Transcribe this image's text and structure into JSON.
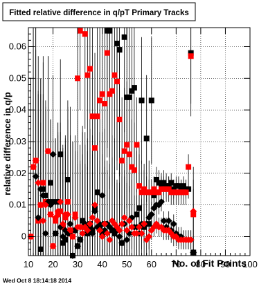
{
  "chart_data": {
    "type": "scatter",
    "title": "Fitted relative difference in q/pT Primary Tracks",
    "xlabel": "No. of Fit Points",
    "ylabel": "relative difference in q/p",
    "xlim": [
      10,
      100
    ],
    "ylim": [
      -0.006,
      0.066
    ],
    "x_ticks": [
      10,
      20,
      30,
      40,
      50,
      60,
      70,
      80,
      90,
      100
    ],
    "y_ticks": [
      0,
      0.01,
      0.02,
      0.03,
      0.04,
      0.05,
      0.06
    ],
    "x_tick_labels": [
      "10",
      "20",
      "30",
      "40",
      "50",
      "60",
      "70",
      "80",
      "90",
      "100"
    ],
    "y_tick_labels": [
      "0",
      "0.01",
      "0.02",
      "0.03",
      "0.04",
      "0.05",
      "0.06"
    ],
    "grid": true,
    "series": [
      {
        "marker": "square",
        "color": "#000000",
        "x": [
          15,
          16,
          17,
          18,
          19,
          20,
          21,
          22,
          23,
          24,
          25,
          26,
          27,
          28,
          29,
          30,
          31,
          32,
          33,
          34,
          35,
          36,
          37,
          38,
          39,
          40,
          41,
          42,
          43,
          44,
          45,
          46,
          47,
          48,
          49,
          50,
          51,
          52,
          53,
          54,
          55,
          56,
          57,
          58,
          59,
          60,
          61,
          62,
          63,
          64,
          65,
          66,
          67,
          68,
          69,
          70,
          71,
          72,
          73,
          74,
          75,
          76,
          77
        ],
        "y": [
          -0.004,
          0.015,
          0.013,
          0.011,
          0.017,
          0.011,
          0.001,
          0.011,
          0.026,
          -0.002,
          -0.001,
          0.018,
          0.001,
          -0.006,
          0.002,
          -0.003,
          -0.001,
          0.005,
          0.003,
          0.001,
          0.004,
          0.002,
          0.009,
          0.014,
          0.003,
          0.001,
          0.004,
          0.065,
          0.065,
          0.002,
          0.001,
          0.061,
          0.059,
          -0.002,
          0.063,
          0.044,
          0.044,
          0.046,
          0.047,
          0.007,
          0.009,
          0.043,
          0.003,
          0.031,
          0.004,
          0.043,
          0.013,
          0.018,
          0.017,
          0.016,
          0.017,
          0.016,
          0.016,
          0.017,
          0.015,
          0.016,
          0.016,
          0.015,
          0.016,
          0.015,
          0.015,
          0.058,
          -0.005
        ],
        "err": [
          0.04,
          0.04,
          0.03,
          0.03,
          0.02,
          0.02,
          0.03,
          0.025,
          0.03,
          0.02,
          0.03,
          0.025,
          0.04,
          0.03,
          0.03,
          0.03,
          0.03,
          0.03,
          0.03,
          0.03,
          0.03,
          0.03,
          0.03,
          0.03,
          0.03,
          0.025,
          0.03,
          0.04,
          0.04,
          0.03,
          0.03,
          0.04,
          0.04,
          0.03,
          0.03,
          0.03,
          0.03,
          0.03,
          0.025,
          0.02,
          0.02,
          0.02,
          0.02,
          0.02,
          0.02,
          0.02,
          0.004,
          0.004,
          0.004,
          0.004,
          0.004,
          0.004,
          0.003,
          0.003,
          0.003,
          0.003,
          0.003,
          0.003,
          0.003,
          0.003,
          0.003,
          0.02,
          0.02
        ]
      },
      {
        "marker": "square",
        "color": "#ff0000",
        "x": [
          11,
          12,
          13,
          14,
          15,
          16,
          17,
          18,
          19,
          20,
          21,
          22,
          23,
          24,
          25,
          26,
          27,
          28,
          29,
          30,
          31,
          32,
          33,
          34,
          35,
          36,
          37,
          38,
          39,
          40,
          41,
          42,
          43,
          44,
          45,
          46,
          47,
          48,
          49,
          50,
          51,
          52,
          53,
          54,
          55,
          56,
          57,
          58,
          59,
          60,
          61,
          62,
          63,
          64,
          65,
          66,
          67,
          68,
          69,
          70,
          71,
          72,
          73,
          74,
          75,
          76,
          77
        ],
        "y": [
          0.0,
          0.022,
          0.024,
          0.005,
          0.01,
          0.017,
          0.011,
          0.027,
          0.007,
          -0.003,
          0.005,
          0.007,
          0.008,
          0.003,
          0.006,
          0.011,
          0.002,
          0.0,
          0.007,
          0.05,
          0.065,
          0.003,
          0.064,
          0.051,
          0.053,
          0.038,
          0.028,
          0.038,
          0.043,
          0.045,
          0.042,
          0.058,
          0.045,
          0.046,
          0.051,
          0.049,
          0.037,
          0.024,
          0.027,
          0.029,
          0.026,
          0.022,
          0.021,
          0.029,
          0.016,
          0.014,
          0.015,
          0.014,
          0.014,
          0.014,
          0.015,
          0.014,
          0.014,
          0.015,
          0.015,
          0.015,
          0.015,
          0.014,
          0.014,
          0.014,
          0.014,
          0.014,
          0.014,
          0.014,
          0.022,
          0.057,
          0.007
        ],
        "err": [
          0.05,
          0.05,
          0.05,
          0.04,
          0.04,
          0.04,
          0.03,
          0.03,
          0.03,
          0.03,
          0.025,
          0.025,
          0.025,
          0.025,
          0.025,
          0.03,
          0.03,
          0.03,
          0.02,
          0.03,
          0.025,
          0.03,
          0.03,
          0.03,
          0.03,
          0.03,
          0.03,
          0.03,
          0.03,
          0.03,
          0.03,
          0.03,
          0.03,
          0.03,
          0.03,
          0.025,
          0.025,
          0.02,
          0.02,
          0.02,
          0.02,
          0.015,
          0.015,
          0.015,
          0.01,
          0.01,
          0.006,
          0.005,
          0.004,
          0.004,
          0.004,
          0.004,
          0.004,
          0.004,
          0.004,
          0.004,
          0.004,
          0.004,
          0.004,
          0.004,
          0.004,
          0.004,
          0.004,
          0.004,
          0.004,
          0.015,
          0.015
        ]
      },
      {
        "marker": "diamond",
        "color": "#000000",
        "x": [
          13,
          14,
          15,
          16,
          17,
          18,
          19,
          20,
          21,
          22,
          23,
          24,
          25,
          26,
          27,
          28,
          29,
          30,
          31,
          32,
          33,
          34,
          35,
          36,
          37,
          38,
          39,
          40,
          41,
          42,
          43,
          44,
          45,
          46,
          47,
          48,
          49,
          50,
          51,
          52,
          53,
          54,
          55,
          56,
          57,
          58,
          59,
          60,
          61,
          62,
          63,
          64,
          65,
          66,
          67,
          68,
          69,
          70,
          71,
          72,
          73,
          74,
          75,
          76,
          77
        ],
        "y": [
          0.019,
          0.006,
          0.015,
          0.013,
          0.001,
          0.011,
          0.01,
          0.026,
          0.001,
          0.011,
          0.003,
          0.0,
          0.002,
          0.001,
          0.004,
          -0.006,
          0.002,
          -0.003,
          -0.001,
          0.001,
          0.004,
          0.002,
          0.003,
          0.001,
          0.008,
          0.003,
          0.004,
          0.013,
          0.002,
          0.004,
          0.003,
          0.005,
          0.002,
          0.002,
          0.0,
          -0.002,
          0.004,
          -0.001,
          0.001,
          0.006,
          0.003,
          0.003,
          0.001,
          0.004,
          0.004,
          0.004,
          0.006,
          0.007,
          0.009,
          0.01,
          0.01,
          0.011,
          0.005,
          0.003,
          0.005,
          0.002,
          0.004,
          0.001,
          0.0,
          0.0,
          -0.001,
          -0.001,
          -0.001,
          -0.001,
          -0.005
        ],
        "err": [
          0.04,
          0.04,
          0.03,
          0.03,
          0.03,
          0.03,
          0.02,
          0.025,
          0.03,
          0.025,
          0.025,
          0.025,
          0.025,
          0.025,
          0.025,
          0.02,
          0.025,
          0.025,
          0.025,
          0.025,
          0.025,
          0.025,
          0.025,
          0.025,
          0.02,
          0.02,
          0.02,
          0.02,
          0.02,
          0.02,
          0.02,
          0.02,
          0.02,
          0.015,
          0.015,
          0.015,
          0.015,
          0.015,
          0.015,
          0.01,
          0.01,
          0.01,
          0.01,
          0.008,
          0.006,
          0.005,
          0.004,
          0.004,
          0.003,
          0.003,
          0.003,
          0.003,
          0.003,
          0.003,
          0.003,
          0.003,
          0.003,
          0.003,
          0.003,
          0.003,
          0.003,
          0.003,
          0.003,
          0.003,
          0.003
        ]
      },
      {
        "marker": "diamond",
        "color": "#ff0000",
        "x": [
          11,
          12,
          13,
          14,
          15,
          16,
          17,
          18,
          19,
          20,
          21,
          22,
          23,
          24,
          25,
          26,
          27,
          28,
          29,
          30,
          31,
          32,
          33,
          34,
          35,
          36,
          37,
          38,
          39,
          40,
          41,
          42,
          43,
          44,
          45,
          46,
          47,
          48,
          49,
          50,
          51,
          52,
          53,
          54,
          55,
          56,
          57,
          58,
          59,
          60,
          61,
          62,
          63,
          64,
          65,
          66,
          67,
          68,
          69,
          70,
          71,
          72,
          73,
          74,
          75,
          76,
          77
        ],
        "y": [
          0.0,
          0.022,
          0.024,
          0.017,
          0.01,
          0.005,
          0.01,
          0.027,
          0.007,
          -0.003,
          0.006,
          0.008,
          0.011,
          0.004,
          0.007,
          0.007,
          0.002,
          0.0,
          0.006,
          0.003,
          0.003,
          0.001,
          0.003,
          0.002,
          0.004,
          0.006,
          0.01,
          0.005,
          0.002,
          0.0,
          0.004,
          0.001,
          -0.001,
          0.005,
          0.004,
          0.003,
          0.002,
          0.004,
          0.006,
          0.002,
          0.005,
          0.003,
          0.001,
          0.001,
          0.003,
          0.001,
          0.004,
          -0.001,
          0.0,
          0.002,
          0.003,
          0.004,
          0.003,
          0.003,
          0.002,
          0.002,
          0.002,
          0.001,
          0.0,
          0.0,
          -0.001,
          -0.001,
          -0.001,
          -0.001,
          -0.001,
          -0.001,
          0.008
        ],
        "err": [
          0.05,
          0.05,
          0.05,
          0.04,
          0.04,
          0.04,
          0.03,
          0.03,
          0.03,
          0.03,
          0.025,
          0.025,
          0.025,
          0.025,
          0.025,
          0.03,
          0.03,
          0.03,
          0.02,
          0.02,
          0.02,
          0.02,
          0.02,
          0.02,
          0.02,
          0.02,
          0.02,
          0.02,
          0.02,
          0.02,
          0.02,
          0.02,
          0.02,
          0.02,
          0.015,
          0.015,
          0.015,
          0.015,
          0.015,
          0.015,
          0.015,
          0.015,
          0.012,
          0.01,
          0.01,
          0.008,
          0.006,
          0.005,
          0.004,
          0.003,
          0.003,
          0.003,
          0.003,
          0.003,
          0.003,
          0.003,
          0.003,
          0.003,
          0.003,
          0.003,
          0.003,
          0.003,
          0.003,
          0.003,
          0.003,
          0.003,
          0.01
        ]
      }
    ]
  },
  "footer": {
    "timestamp": "Wed Oct  8 18:14:18 2014"
  }
}
